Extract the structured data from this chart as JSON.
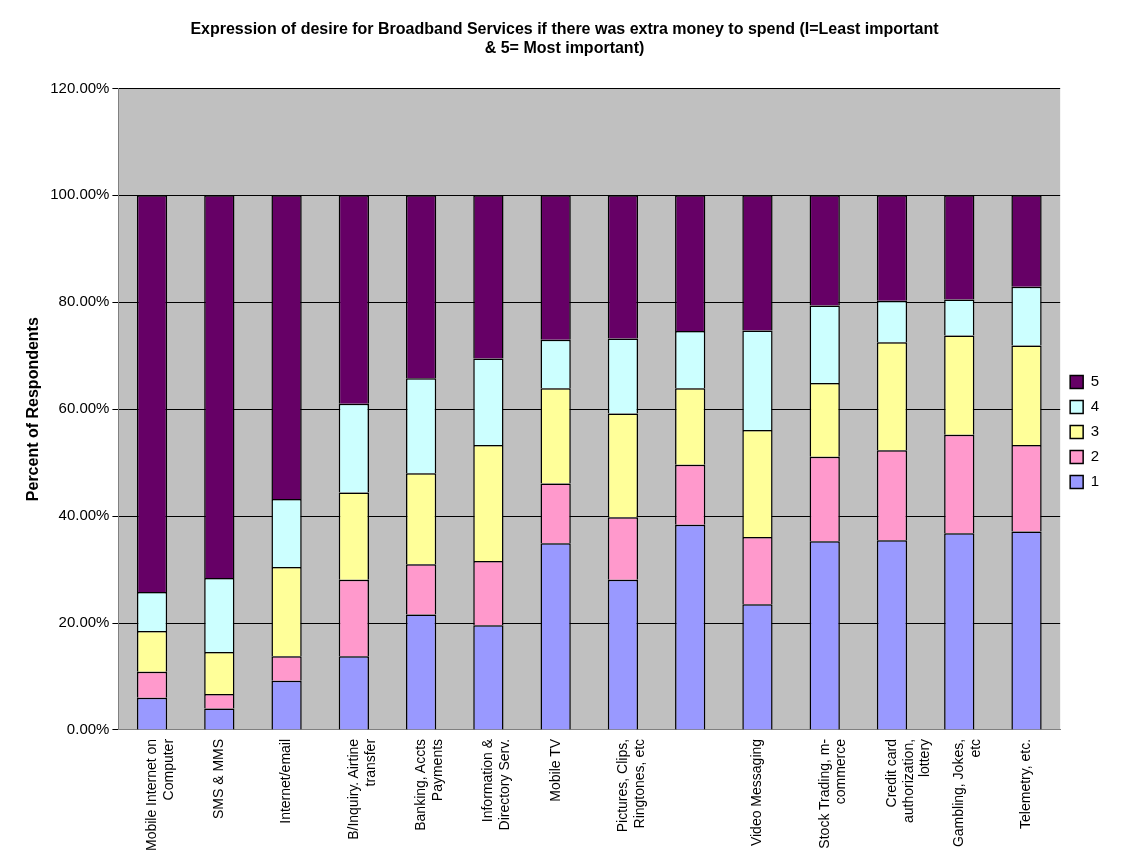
{
  "chart_data": {
    "type": "bar",
    "stacked": true,
    "title": "Expression of desire for Broadband Services if there was extra money to spend (I=Least important & 5= Most important)",
    "ylabel": "Percent of Respondents",
    "categories": [
      "Mobile Internet on Computer",
      "SMS & MMS",
      "Internet/email",
      "B/Inquiry. Airtine transfer",
      "Banking, Accts Payments",
      "Information & Directory Serv.",
      "Mobile TV",
      "Pictures, Clips, Ringtones, etc",
      null,
      "Video Messaging",
      "Stock Trading, m-commerce",
      "Credit card authorization, lottery",
      "Gambling, Jokes, etc",
      "Telemetry, etc."
    ],
    "series": [
      {
        "name": "1",
        "color": "#9999ff",
        "values": [
          6.0,
          4.0,
          9.2,
          13.8,
          21.6,
          19.6,
          34.9,
          28.1,
          38.4,
          23.5,
          35.3,
          35.5,
          36.8,
          37.1
        ]
      },
      {
        "name": "2",
        "color": "#ff99cc",
        "values": [
          4.9,
          2.7,
          4.6,
          14.3,
          9.4,
          12.0,
          11.2,
          11.7,
          11.2,
          12.6,
          15.8,
          16.8,
          18.4,
          16.2
        ]
      },
      {
        "name": "3",
        "color": "#ffff99",
        "values": [
          7.6,
          7.9,
          16.7,
          16.3,
          17.0,
          21.7,
          17.8,
          19.4,
          14.3,
          20.0,
          13.8,
          20.2,
          18.6,
          18.6
        ]
      },
      {
        "name": "4",
        "color": "#ccffff",
        "values": [
          7.3,
          13.8,
          12.7,
          16.6,
          17.8,
          16.2,
          9.1,
          14.0,
          10.7,
          18.6,
          14.5,
          7.8,
          6.7,
          11.0
        ]
      },
      {
        "name": "5",
        "color": "#660066",
        "values": [
          74.2,
          71.6,
          56.8,
          39.0,
          34.2,
          30.5,
          27.0,
          26.8,
          25.4,
          25.3,
          20.6,
          19.7,
          19.5,
          17.1
        ]
      }
    ],
    "ylim": [
      0,
      120
    ],
    "yticks": [
      {
        "value": 0,
        "label": "0.00%"
      },
      {
        "value": 20,
        "label": "20.00%"
      },
      {
        "value": 40,
        "label": "40.00%"
      },
      {
        "value": 60,
        "label": "60.00%"
      },
      {
        "value": 80,
        "label": "80.00%"
      },
      {
        "value": 100,
        "label": "100.00%"
      },
      {
        "value": 120,
        "label": "120.00%"
      }
    ],
    "grid": "y",
    "legend": "right"
  }
}
